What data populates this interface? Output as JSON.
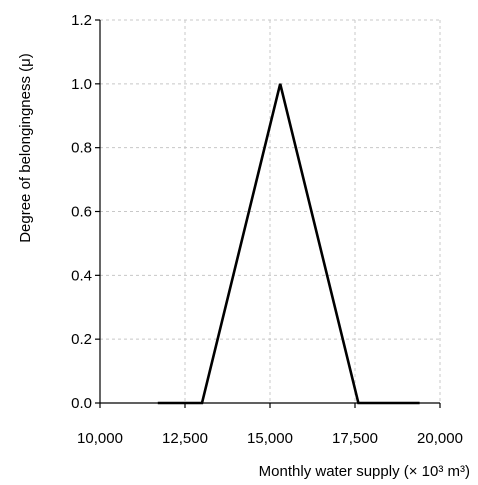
{
  "chart_data": {
    "type": "line",
    "title": "",
    "xlabel": "Monthly water supply (× 10³ m³)",
    "ylabel": "Degree of belongingness (μ)",
    "xlim": [
      10000,
      20000
    ],
    "ylim": [
      0,
      1.2
    ],
    "x_ticks": [
      10000,
      12500,
      15000,
      17500,
      20000
    ],
    "x_tick_labels": [
      "10,000",
      "12,500",
      "15,000",
      "17,500",
      "20,000"
    ],
    "y_ticks": [
      0,
      0.2,
      0.4,
      0.6,
      0.8,
      1.0,
      1.2
    ],
    "y_tick_labels": [
      "0.0",
      "0.2",
      "0.4",
      "0.6",
      "0.8",
      "1.0",
      "1.2"
    ],
    "grid": true,
    "legend": "none",
    "series": [
      {
        "x": [
          11700,
          13000,
          15300,
          17600,
          19400
        ],
        "y": [
          0,
          0,
          1.0,
          0,
          0
        ],
        "color": "#000000"
      }
    ]
  }
}
